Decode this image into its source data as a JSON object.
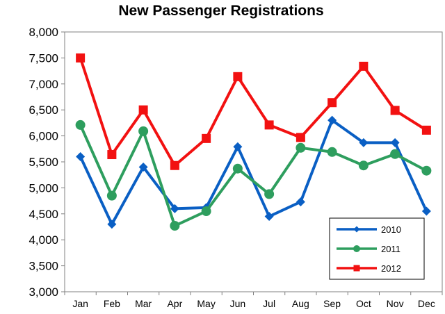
{
  "chart_data": {
    "type": "line",
    "title": "New Passenger Registrations",
    "categories": [
      "Jan",
      "Feb",
      "Mar",
      "Apr",
      "May",
      "Jun",
      "Jul",
      "Aug",
      "Sep",
      "Oct",
      "Nov",
      "Dec"
    ],
    "ylim": [
      3000,
      8000
    ],
    "yticks": [
      3000,
      3500,
      4000,
      4500,
      5000,
      5500,
      6000,
      6500,
      7000,
      7500,
      8000
    ],
    "ytick_labels": [
      "3,000",
      "3,500",
      "4,000",
      "4,500",
      "5,000",
      "5,500",
      "6,000",
      "6,500",
      "7,000",
      "7,500",
      "8,000"
    ],
    "grid": false,
    "legend_position": "bottom-right",
    "series": [
      {
        "name": "2010",
        "color": "#0A5FC4",
        "marker": "diamond",
        "values": [
          5600,
          4300,
          5400,
          4600,
          4620,
          5790,
          4450,
          4730,
          6300,
          5870,
          5870,
          4550
        ]
      },
      {
        "name": "2011",
        "color": "#2E9E5E",
        "marker": "circle",
        "values": [
          6210,
          4850,
          6090,
          4270,
          4550,
          5370,
          4880,
          5770,
          5690,
          5430,
          5650,
          5330
        ]
      },
      {
        "name": "2012",
        "color": "#F21111",
        "marker": "square",
        "values": [
          7500,
          5640,
          6500,
          5430,
          5950,
          7140,
          6210,
          5970,
          6640,
          7340,
          6490,
          6110
        ]
      }
    ]
  }
}
